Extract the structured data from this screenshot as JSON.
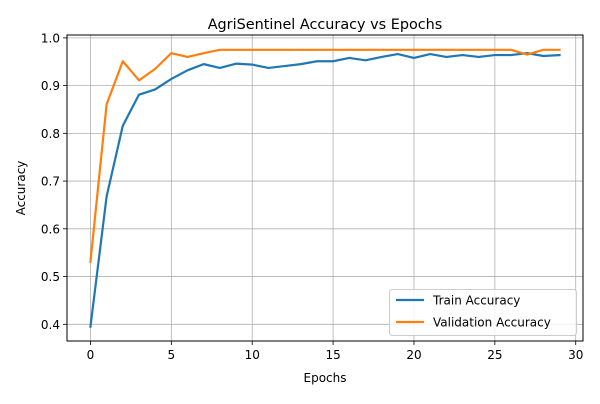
{
  "chart_data": {
    "type": "line",
    "title": "AgriSentinel Accuracy vs Epochs",
    "xlabel": "Epochs",
    "ylabel": "Accuracy",
    "xlim": [
      -1.45,
      30.45
    ],
    "ylim": [
      0.365,
      1.006
    ],
    "xticks": [
      0,
      5,
      10,
      15,
      20,
      25,
      30
    ],
    "xtick_labels": [
      "0",
      "5",
      "10",
      "15",
      "20",
      "25",
      "30"
    ],
    "yticks": [
      0.4,
      0.5,
      0.6,
      0.7,
      0.8,
      0.9,
      1.0
    ],
    "ytick_labels": [
      "0.4",
      "0.5",
      "0.6",
      "0.7",
      "0.8",
      "0.9",
      "1.0"
    ],
    "grid": true,
    "legend_position": "lower-right",
    "x": [
      0,
      1,
      2,
      3,
      4,
      5,
      6,
      7,
      8,
      9,
      10,
      11,
      12,
      13,
      14,
      15,
      16,
      17,
      18,
      19,
      20,
      21,
      22,
      23,
      24,
      25,
      26,
      27,
      28,
      29
    ],
    "series": [
      {
        "name": "Train Accuracy",
        "color": "#1f77b4",
        "values": [
          0.395,
          0.668,
          0.816,
          0.881,
          0.892,
          0.914,
          0.932,
          0.945,
          0.937,
          0.946,
          0.944,
          0.937,
          0.941,
          0.945,
          0.951,
          0.951,
          0.958,
          0.953,
          0.96,
          0.966,
          0.958,
          0.966,
          0.96,
          0.964,
          0.96,
          0.964,
          0.964,
          0.968,
          0.962,
          0.964
        ]
      },
      {
        "name": "Validation Accuracy",
        "color": "#ff7f0e",
        "values": [
          0.531,
          0.861,
          0.951,
          0.911,
          0.935,
          0.968,
          0.96,
          0.968,
          0.975,
          0.975,
          0.975,
          0.975,
          0.975,
          0.975,
          0.975,
          0.975,
          0.975,
          0.975,
          0.975,
          0.975,
          0.975,
          0.975,
          0.975,
          0.975,
          0.975,
          0.975,
          0.975,
          0.965,
          0.975,
          0.975
        ]
      }
    ]
  }
}
